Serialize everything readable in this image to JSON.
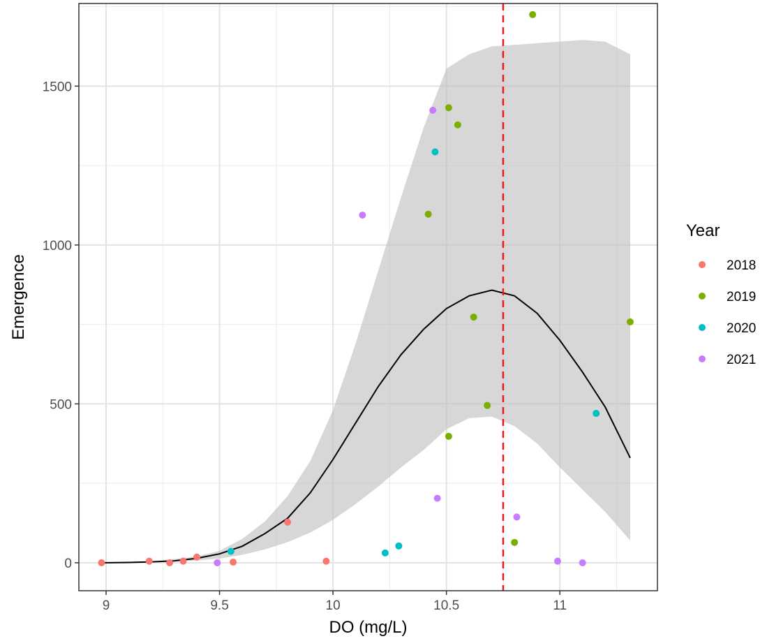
{
  "chart_data": {
    "type": "scatter",
    "xlabel": "DO (mg/L)",
    "ylabel": "Emergence",
    "xlim": [
      8.88,
      11.43
    ],
    "ylim": [
      -88,
      1760
    ],
    "x_ticks": [
      9,
      9.5,
      10,
      10.5,
      11
    ],
    "x_tick_labels": [
      "9",
      "9.5",
      "10",
      "10.5",
      "11"
    ],
    "y_ticks": [
      0,
      500,
      1000,
      1500
    ],
    "y_tick_labels": [
      "0",
      "500",
      "1000",
      "1500"
    ],
    "grid": true,
    "legend": {
      "title": "Year",
      "position": "right",
      "entries": [
        {
          "label": "2018",
          "color": "#F8766D"
        },
        {
          "label": "2019",
          "color": "#7CAE00"
        },
        {
          "label": "2020",
          "color": "#00BFC4"
        },
        {
          "label": "2021",
          "color": "#C77CFF"
        }
      ]
    },
    "series": [
      {
        "name": "2018",
        "color": "#F8766D",
        "points": [
          [
            8.98,
            0
          ],
          [
            9.19,
            5
          ],
          [
            9.28,
            0
          ],
          [
            9.34,
            5
          ],
          [
            9.4,
            18
          ],
          [
            9.56,
            2
          ],
          [
            9.8,
            128
          ],
          [
            9.97,
            5
          ]
        ]
      },
      {
        "name": "2019",
        "color": "#7CAE00",
        "points": [
          [
            10.42,
            1097
          ],
          [
            10.51,
            1432
          ],
          [
            10.55,
            1378
          ],
          [
            10.51,
            398
          ],
          [
            10.62,
            773
          ],
          [
            10.68,
            495
          ],
          [
            10.8,
            64
          ],
          [
            10.88,
            1725
          ],
          [
            11.31,
            758
          ]
        ]
      },
      {
        "name": "2020",
        "color": "#00BFC4",
        "points": [
          [
            9.55,
            36
          ],
          [
            10.23,
            31
          ],
          [
            10.29,
            53
          ],
          [
            10.45,
            1293
          ],
          [
            11.16,
            470
          ]
        ]
      },
      {
        "name": "2021",
        "color": "#C77CFF",
        "points": [
          [
            9.49,
            0
          ],
          [
            10.13,
            1094
          ],
          [
            10.44,
            1424
          ],
          [
            10.46,
            203
          ],
          [
            10.81,
            144
          ],
          [
            10.99,
            5
          ],
          [
            11.1,
            0
          ]
        ]
      }
    ],
    "fit_line": {
      "color": "#000000",
      "points": [
        [
          8.98,
          0
        ],
        [
          9.1,
          1
        ],
        [
          9.2,
          3
        ],
        [
          9.3,
          6
        ],
        [
          9.4,
          14
        ],
        [
          9.5,
          28
        ],
        [
          9.6,
          52
        ],
        [
          9.7,
          92
        ],
        [
          9.8,
          140
        ],
        [
          9.9,
          220
        ],
        [
          10.0,
          325
        ],
        [
          10.1,
          440
        ],
        [
          10.2,
          555
        ],
        [
          10.3,
          655
        ],
        [
          10.4,
          735
        ],
        [
          10.5,
          800
        ],
        [
          10.6,
          840
        ],
        [
          10.7,
          858
        ],
        [
          10.8,
          840
        ],
        [
          10.9,
          785
        ],
        [
          11.0,
          700
        ],
        [
          11.1,
          600
        ],
        [
          11.2,
          490
        ],
        [
          11.31,
          330
        ]
      ]
    },
    "confidence_band": {
      "color": "#bdbdbd",
      "upper": [
        [
          8.98,
          0
        ],
        [
          9.2,
          4
        ],
        [
          9.4,
          20
        ],
        [
          9.5,
          38
        ],
        [
          9.6,
          75
        ],
        [
          9.7,
          130
        ],
        [
          9.8,
          210
        ],
        [
          9.9,
          320
        ],
        [
          10.0,
          480
        ],
        [
          10.1,
          690
        ],
        [
          10.2,
          920
        ],
        [
          10.3,
          1150
        ],
        [
          10.4,
          1370
        ],
        [
          10.5,
          1555
        ],
        [
          10.6,
          1600
        ],
        [
          10.7,
          1625
        ],
        [
          10.8,
          1630
        ],
        [
          10.9,
          1635
        ],
        [
          11.0,
          1640
        ],
        [
          11.1,
          1645
        ],
        [
          11.2,
          1640
        ],
        [
          11.31,
          1600
        ]
      ],
      "lower": [
        [
          8.98,
          0
        ],
        [
          9.2,
          1
        ],
        [
          9.4,
          7
        ],
        [
          9.5,
          13
        ],
        [
          9.6,
          25
        ],
        [
          9.7,
          42
        ],
        [
          9.8,
          65
        ],
        [
          9.9,
          95
        ],
        [
          10.0,
          135
        ],
        [
          10.1,
          185
        ],
        [
          10.2,
          240
        ],
        [
          10.3,
          300
        ],
        [
          10.4,
          355
        ],
        [
          10.5,
          420
        ],
        [
          10.6,
          455
        ],
        [
          10.7,
          460
        ],
        [
          10.8,
          430
        ],
        [
          10.9,
          375
        ],
        [
          11.0,
          300
        ],
        [
          11.1,
          230
        ],
        [
          11.2,
          160
        ],
        [
          11.31,
          70
        ]
      ]
    },
    "threshold_line": {
      "x": 10.75,
      "color": "#E41A1C",
      "style": "dashed"
    }
  }
}
